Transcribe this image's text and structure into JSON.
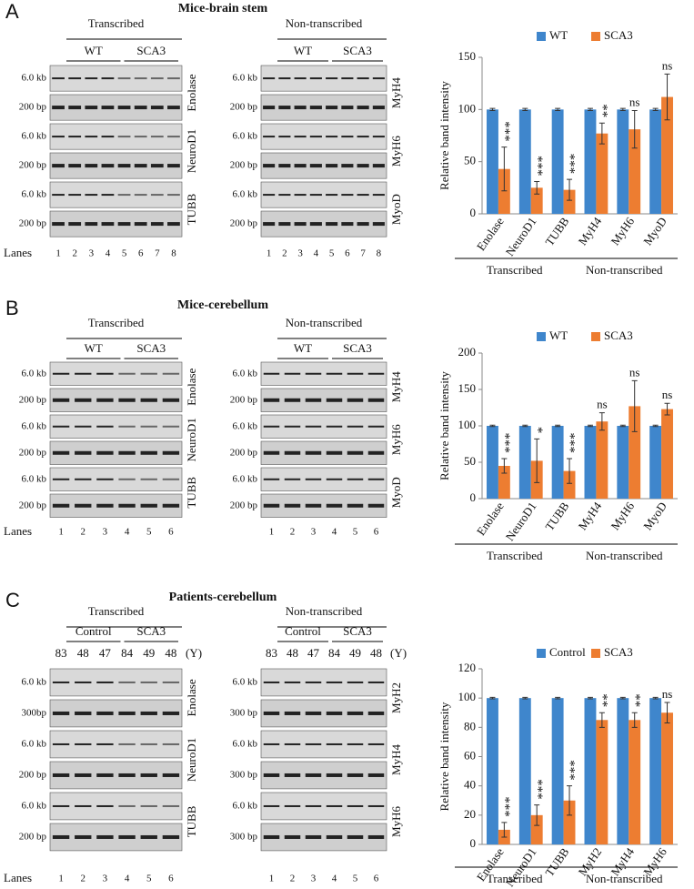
{
  "panels": [
    {
      "letter": "A",
      "title": "Mice-brain stem",
      "lanes_label": "Lanes",
      "left": {
        "header": "Transcribed",
        "groups": [
          "WT",
          "SCA3"
        ],
        "lanes": [
          1,
          2,
          3,
          4,
          5,
          6,
          7,
          8
        ],
        "blots": [
          {
            "gene": "Enolase",
            "markers": [
              "6.0 kb",
              "200 bp"
            ]
          },
          {
            "gene": "NeuroD1",
            "markers": [
              "6.0 kb",
              "200 bp"
            ]
          },
          {
            "gene": "TUBB",
            "markers": [
              "6.0 kb",
              "200 bp"
            ]
          }
        ]
      },
      "right": {
        "header": "Non-transcribed",
        "groups": [
          "WT",
          "SCA3"
        ],
        "lanes": [
          1,
          2,
          3,
          4,
          5,
          6,
          7,
          8
        ],
        "blots": [
          {
            "gene": "MyH4",
            "markers": [
              "6.0 kb",
              "200 bp"
            ]
          },
          {
            "gene": "MyH6",
            "markers": [
              "6.0 kb",
              "200 bp"
            ]
          },
          {
            "gene": "MyoD",
            "markers": [
              "6.0 kb",
              "200 bp"
            ]
          }
        ]
      }
    },
    {
      "letter": "B",
      "title": "Mice-cerebellum",
      "lanes_label": "Lanes",
      "left": {
        "header": "Transcribed",
        "groups": [
          "WT",
          "SCA3"
        ],
        "lanes": [
          1,
          2,
          3,
          4,
          5,
          6
        ],
        "blots": [
          {
            "gene": "Enolase",
            "markers": [
              "6.0 kb",
              "200 bp"
            ]
          },
          {
            "gene": "NeuroD1",
            "markers": [
              "6.0 kb",
              "200 bp"
            ]
          },
          {
            "gene": "TUBB",
            "markers": [
              "6.0 kb",
              "200 bp"
            ]
          }
        ]
      },
      "right": {
        "header": "Non-transcribed",
        "groups": [
          "WT",
          "SCA3"
        ],
        "lanes": [
          1,
          2,
          3,
          4,
          5,
          6
        ],
        "blots": [
          {
            "gene": "MyH4",
            "markers": [
              "6.0 kb",
              "200 bp"
            ]
          },
          {
            "gene": "MyH6",
            "markers": [
              "6.0 kb",
              "200 bp"
            ]
          },
          {
            "gene": "MyoD",
            "markers": [
              "6.0 kb",
              "200 bp"
            ]
          }
        ]
      }
    },
    {
      "letter": "C",
      "title": "Patients-cerebellum",
      "lanes_label": "Lanes",
      "age_unit": "(Y)",
      "left": {
        "header": "Transcribed",
        "groups": [
          "Control",
          "SCA3"
        ],
        "ages": [
          83,
          48,
          47,
          84,
          49,
          48
        ],
        "lanes": [
          1,
          2,
          3,
          4,
          5,
          6
        ],
        "blots": [
          {
            "gene": "Enolase",
            "markers": [
              "6.0 kb",
              "300bp"
            ]
          },
          {
            "gene": "NeuroD1",
            "markers": [
              "6.0 kb",
              "200 bp"
            ]
          },
          {
            "gene": "TUBB",
            "markers": [
              "6.0 kb",
              "200 bp"
            ]
          }
        ]
      },
      "right": {
        "header": "Non-transcribed",
        "groups": [
          "Control",
          "SCA3"
        ],
        "ages": [
          83,
          48,
          47,
          84,
          49,
          48
        ],
        "lanes": [
          1,
          2,
          3,
          4,
          5,
          6
        ],
        "blots": [
          {
            "gene": "MyH2",
            "markers": [
              "6.0 kb",
              "300 bp"
            ]
          },
          {
            "gene": "MyH4",
            "markers": [
              "6.0 kb",
              "300 bp"
            ]
          },
          {
            "gene": "MyH6",
            "markers": [
              "6.0 kb",
              "300 bp"
            ]
          }
        ]
      }
    }
  ],
  "chart_data": [
    {
      "type": "bar",
      "ylabel": "Relative band intensity",
      "ylim": [
        0,
        150
      ],
      "yticks": [
        0,
        50,
        100,
        150
      ],
      "categories": [
        "Enolase",
        "NeuroD1",
        "TUBB",
        "MyH4",
        "MyH6",
        "MyoD"
      ],
      "groups": [
        "Transcribed",
        "Non-transcribed"
      ],
      "series": [
        {
          "name": "WT",
          "color": "#3f86cc",
          "values": [
            100,
            100,
            100,
            100,
            100,
            100
          ],
          "errors": [
            1,
            1,
            1,
            1,
            1,
            1
          ]
        },
        {
          "name": "SCA3",
          "color": "#ed7d31",
          "values": [
            43,
            25,
            23,
            77,
            81,
            112
          ],
          "errors": [
            21,
            6,
            10,
            10,
            18,
            22
          ]
        }
      ],
      "annotations": [
        "***",
        "***",
        "***",
        "**",
        "ns",
        "ns"
      ]
    },
    {
      "type": "bar",
      "ylabel": "Relative band intensity",
      "ylim": [
        0,
        200
      ],
      "yticks": [
        0,
        50,
        100,
        150,
        200
      ],
      "categories": [
        "Enolase",
        "NeuroD1",
        "TUBB",
        "MyH4",
        "MyH6",
        "MyoD"
      ],
      "groups": [
        "Transcribed",
        "Non-transcribed"
      ],
      "series": [
        {
          "name": "WT",
          "color": "#3f86cc",
          "values": [
            100,
            100,
            100,
            100,
            100,
            100
          ],
          "errors": [
            1,
            1,
            1,
            1,
            1,
            1
          ]
        },
        {
          "name": "SCA3",
          "color": "#ed7d31",
          "values": [
            45,
            52,
            38,
            106,
            127,
            123
          ],
          "errors": [
            10,
            30,
            17,
            12,
            35,
            8
          ]
        }
      ],
      "annotations": [
        "***",
        "*",
        "***",
        "ns",
        "ns",
        "ns"
      ]
    },
    {
      "type": "bar",
      "ylabel": "Relative band intensity",
      "ylim": [
        0,
        120
      ],
      "yticks": [
        0,
        20,
        40,
        60,
        80,
        100,
        120
      ],
      "categories": [
        "Enolase",
        "NeuroD1",
        "TUBB",
        "MyH2",
        "MyH4",
        "MyH6"
      ],
      "groups": [
        "Transcribed",
        "Non-transcribed"
      ],
      "series": [
        {
          "name": "Control",
          "color": "#3f86cc",
          "values": [
            100,
            100,
            100,
            100,
            100,
            100
          ],
          "errors": [
            0.5,
            0.5,
            0.5,
            0.5,
            0.5,
            0.5
          ]
        },
        {
          "name": "SCA3",
          "color": "#ed7d31",
          "values": [
            10,
            20,
            30,
            85,
            85,
            90
          ],
          "errors": [
            5,
            7,
            10,
            5,
            5,
            7
          ]
        }
      ],
      "annotations": [
        "***",
        "***",
        "***",
        "**",
        "**",
        "ns"
      ]
    }
  ]
}
